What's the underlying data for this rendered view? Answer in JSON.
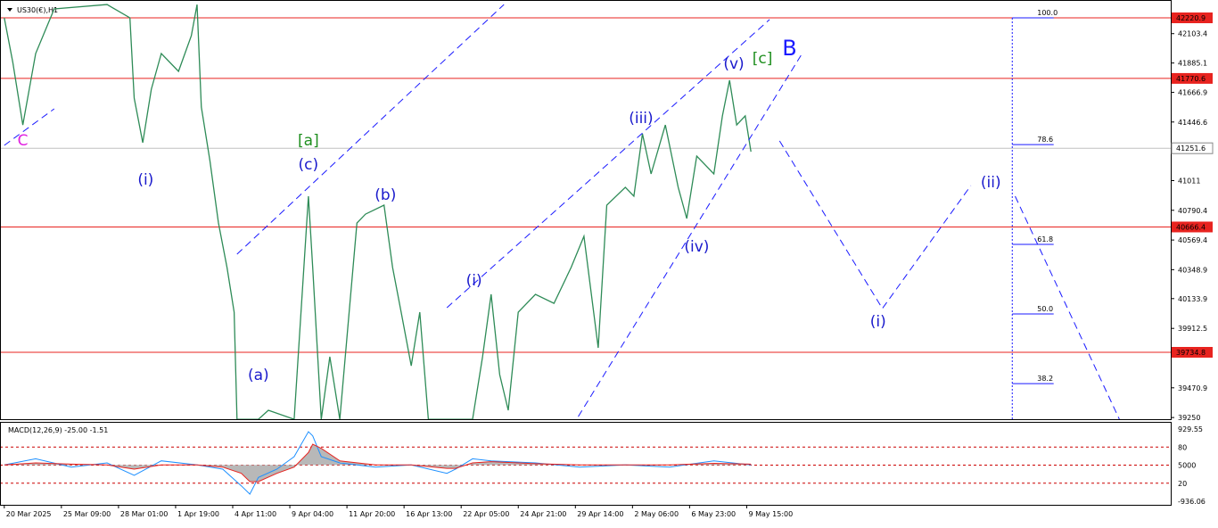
{
  "chart_data": {
    "type": "line",
    "title": "US30(€),H1",
    "xlim": [
      0,
      820
    ],
    "xticks": [
      {
        "value": 3,
        "label": "20 Mar 2025"
      },
      {
        "value": 43,
        "label": "25 Mar 09:00"
      },
      {
        "value": 83,
        "label": "28 Mar 01:00"
      },
      {
        "value": 123,
        "label": "1 Apr 19:00"
      },
      {
        "value": 163,
        "label": "4 Apr 11:00"
      },
      {
        "value": 203,
        "label": "9 Apr 04:00"
      },
      {
        "value": 243,
        "label": "11 Apr 20:00"
      },
      {
        "value": 283,
        "label": "16 Apr 13:00"
      },
      {
        "value": 323,
        "label": "22 Apr 05:00"
      },
      {
        "value": 363,
        "label": "24 Apr 21:00"
      },
      {
        "value": 403,
        "label": "29 Apr 14:00"
      },
      {
        "value": 443,
        "label": "2 May 06:00"
      },
      {
        "value": 483,
        "label": "6 May 23:00"
      },
      {
        "value": 523,
        "label": "9 May 15:00"
      }
    ],
    "ylim": [
      39237.6,
      42353.5
    ],
    "yticks": [
      42103.4,
      41885.1,
      41666.9,
      41446.6,
      41011.0,
      40790.4,
      40569.4,
      40348.9,
      40133.9,
      39912.5,
      39470.9,
      39250.0
    ],
    "series": [
      {
        "color": "#2e8b57",
        "x": [
          3,
          9,
          16,
          25,
          38,
          75,
          91,
          94,
          100,
          106,
          113,
          125,
          134,
          138,
          141,
          147,
          153,
          159,
          164,
          166,
          181,
          188,
          206,
          216,
          219,
          225,
          231,
          238,
          250,
          256,
          269,
          275,
          281,
          288,
          294,
          300,
          331,
          338,
          344,
          350,
          356,
          363,
          375,
          388,
          400,
          409,
          419,
          425,
          438,
          444,
          450,
          456,
          466,
          475,
          481,
          488,
          500,
          506,
          511,
          516,
          522,
          526
        ],
        "values": [
          42221,
          41889,
          41425,
          41956,
          42287,
          42320,
          42221,
          41624,
          41293,
          41690,
          41956,
          41823,
          42088,
          42320,
          41558,
          41160,
          40696,
          40365,
          40033,
          39237,
          39237,
          39304,
          39237,
          40895,
          40365,
          39237,
          39702,
          39237,
          40696,
          40762,
          40829,
          40365,
          40033,
          39635,
          40033,
          39237,
          39237,
          39702,
          40166,
          39569,
          39304,
          40033,
          40166,
          40099,
          40365,
          40597,
          39768,
          40829,
          40961,
          40895,
          41359,
          41061,
          41425,
          40961,
          40729,
          41193,
          41061,
          41492,
          41757,
          41425,
          41492,
          41226
        ]
      }
    ],
    "levels": [
      {
        "price": 42220.9,
        "color": "#e8231f"
      },
      {
        "price": 41770.6,
        "color": "#e8231f"
      },
      {
        "price": 40666.4,
        "color": "#e8231f"
      },
      {
        "price": 39734.8,
        "color": "#e8231f"
      }
    ],
    "current_price": 41251.6,
    "annotations": [
      {
        "text": "C",
        "x": 16,
        "price": 41312,
        "color": "#e020e0"
      },
      {
        "text": "(i)",
        "x": 102,
        "price": 41021,
        "color": "#1a1acc"
      },
      {
        "text": "[a]",
        "x": 216,
        "price": 41312,
        "color": "#1f8f1f"
      },
      {
        "text": "(c)",
        "x": 216,
        "price": 41134,
        "color": "#1a1acc"
      },
      {
        "text": "(b)",
        "x": 270,
        "price": 40908,
        "color": "#1a1acc"
      },
      {
        "text": "(a)",
        "x": 181,
        "price": 39569,
        "color": "#1a1acc"
      },
      {
        "text": "(i)",
        "x": 332,
        "price": 40272,
        "color": "#1a1acc"
      },
      {
        "text": "(iii)",
        "x": 449,
        "price": 41478,
        "color": "#1a1acc"
      },
      {
        "text": "(iv)",
        "x": 488,
        "price": 40524,
        "color": "#1a1acc"
      },
      {
        "text": "(v)",
        "x": 514,
        "price": 41883,
        "color": "#1a1acc"
      },
      {
        "text": "[c]",
        "x": 534,
        "price": 41922,
        "color": "#1f8f1f"
      },
      {
        "text": "B",
        "x": 553,
        "price": 41982,
        "color": "#1a1aff"
      },
      {
        "text": "(i)",
        "x": 615,
        "price": 39967,
        "color": "#1a1acc"
      },
      {
        "text": "(ii)",
        "x": 694,
        "price": 41001,
        "color": "#1a1acc"
      }
    ],
    "trend_lines": [
      {
        "x": [
          3,
          38
        ],
        "y": [
          41273,
          41545
        ]
      },
      {
        "x": [
          166,
          353
        ],
        "y": [
          40464,
          42320
        ]
      },
      {
        "x": [
          313,
          539
        ],
        "y": [
          40066,
          42208
        ]
      },
      {
        "x": [
          405,
          561
        ],
        "y": [
          39257,
          41942
        ]
      },
      {
        "x": [
          546,
          618,
          680
        ],
        "y": [
          41306,
          40060,
          40974
        ]
      },
      {
        "x": [
          711,
          784
        ],
        "y": [
          40895,
          39237
        ]
      }
    ],
    "fib": {
      "x": [
        709,
        738
      ],
      "levels": [
        {
          "label": "100.0",
          "price": 42221
        },
        {
          "label": "78.6",
          "price": 41279
        },
        {
          "label": "61.8",
          "price": 40537
        },
        {
          "label": "50.0",
          "price": 40020
        },
        {
          "label": "38.2",
          "price": 39502
        }
      ]
    },
    "macd": {
      "title": "MACD(12,26,9) -25.00 -1.51",
      "ylim": [
        -936.06,
        929.55
      ],
      "axis_labels": [
        "929.55",
        "80",
        "5000",
        "20",
        "-936.06"
      ],
      "x": [
        3,
        25,
        50,
        75,
        94,
        113,
        138,
        156,
        169,
        175,
        181,
        194,
        206,
        216,
        219,
        225,
        238,
        263,
        288,
        313,
        319,
        331,
        344,
        375,
        406,
        438,
        469,
        500,
        526
      ],
      "main": [
        0,
        150,
        -50,
        50,
        -250,
        100,
        0,
        -100,
        -500,
        -700,
        -300,
        -100,
        200,
        800,
        700,
        200,
        50,
        -50,
        0,
        -200,
        -100,
        150,
        100,
        50,
        -50,
        0,
        -50,
        100,
        0
      ],
      "signal": [
        0,
        50,
        20,
        0,
        -100,
        0,
        0,
        -50,
        -200,
        -400,
        -400,
        -200,
        -50,
        300,
        500,
        400,
        100,
        0,
        0,
        -80,
        -80,
        50,
        80,
        30,
        0,
        0,
        0,
        40,
        20
      ]
    }
  }
}
